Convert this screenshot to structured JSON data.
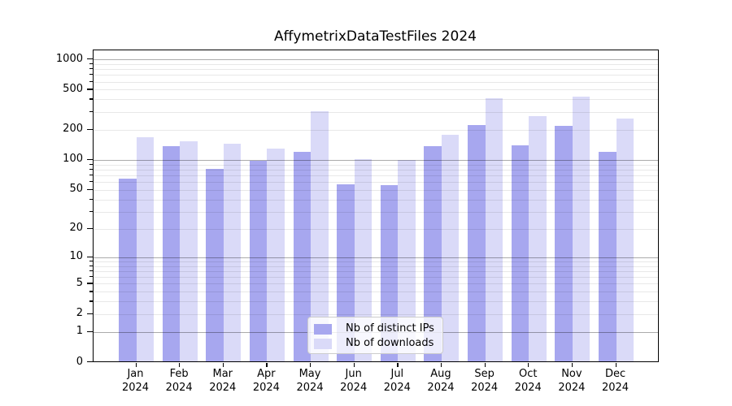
{
  "chart_data": {
    "type": "bar",
    "title": "AffymetrixDataTestFiles 2024",
    "xlabel": "",
    "ylabel": "",
    "yscale": "log1p",
    "ylim": [
      0,
      1220
    ],
    "grid": true,
    "legend_position": "bottom-center-inside",
    "yticks": [
      1000,
      500,
      200,
      100,
      50,
      20,
      10,
      5,
      2,
      1,
      0
    ],
    "categories": [
      "Jan",
      "Feb",
      "Mar",
      "Apr",
      "May",
      "Jun",
      "Jul",
      "Aug",
      "Sep",
      "Oct",
      "Nov",
      "Dec"
    ],
    "xtick_year": "2024",
    "series": [
      {
        "name": "Nb of distinct IPs",
        "color": "#a7a7ef",
        "values": [
          65,
          136,
          82,
          98,
          120,
          57,
          56,
          136,
          223,
          140,
          220,
          120
        ]
      },
      {
        "name": "Nb of downloads",
        "color": "#dadaf8",
        "values": [
          168,
          154,
          145,
          130,
          305,
          102,
          99,
          178,
          414,
          272,
          424,
          258
        ]
      }
    ]
  },
  "colors": {
    "spine": "#000000",
    "grid_decade": "#ababab",
    "grid_light": "#e8e8e8",
    "background": "#ffffff"
  }
}
